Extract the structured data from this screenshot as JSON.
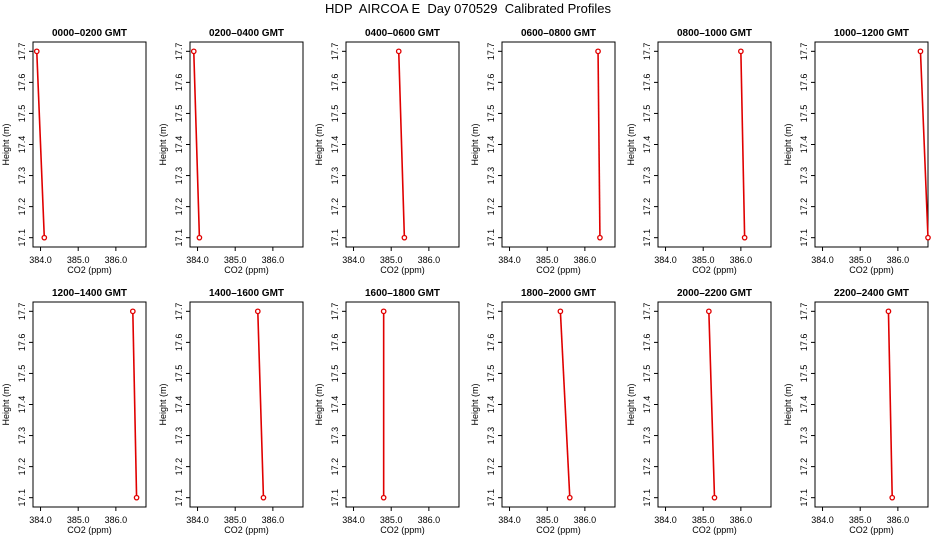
{
  "title": "HDP  AIRCOA E  Day 070529  Calibrated Profiles",
  "colors": {
    "series": "#e00000",
    "axis": "#000000"
  },
  "chart_data": [
    {
      "type": "line",
      "title": "0000–0200 GMT",
      "xlabel": "CO2 (ppm)",
      "ylabel": "Height (m)",
      "xlim": [
        383.8,
        386.8
      ],
      "ylim": [
        17.07,
        17.73
      ],
      "xticks": [
        "384.0",
        "385.0",
        "386.0"
      ],
      "yticks": [
        "17.1",
        "17.2",
        "17.3",
        "17.4",
        "17.5",
        "17.6",
        "17.7"
      ],
      "x": [
        383.9,
        384.1
      ],
      "y": [
        17.7,
        17.1
      ]
    },
    {
      "type": "line",
      "title": "0200–0400 GMT",
      "xlabel": "CO2 (ppm)",
      "ylabel": "Height (m)",
      "xlim": [
        383.8,
        386.8
      ],
      "ylim": [
        17.07,
        17.73
      ],
      "xticks": [
        "384.0",
        "385.0",
        "386.0"
      ],
      "yticks": [
        "17.1",
        "17.2",
        "17.3",
        "17.4",
        "17.5",
        "17.6",
        "17.7"
      ],
      "x": [
        383.9,
        384.05
      ],
      "y": [
        17.7,
        17.1
      ]
    },
    {
      "type": "line",
      "title": "0400–0600 GMT",
      "xlabel": "CO2 (ppm)",
      "ylabel": "Height (m)",
      "xlim": [
        383.8,
        386.8
      ],
      "ylim": [
        17.07,
        17.73
      ],
      "xticks": [
        "384.0",
        "385.0",
        "386.0"
      ],
      "yticks": [
        "17.1",
        "17.2",
        "17.3",
        "17.4",
        "17.5",
        "17.6",
        "17.7"
      ],
      "x": [
        385.2,
        385.35
      ],
      "y": [
        17.7,
        17.1
      ]
    },
    {
      "type": "line",
      "title": "0600–0800 GMT",
      "xlabel": "CO2 (ppm)",
      "ylabel": "Height (m)",
      "xlim": [
        383.8,
        386.8
      ],
      "ylim": [
        17.07,
        17.73
      ],
      "xticks": [
        "384.0",
        "385.0",
        "386.0"
      ],
      "yticks": [
        "17.1",
        "17.2",
        "17.3",
        "17.4",
        "17.5",
        "17.6",
        "17.7"
      ],
      "x": [
        386.35,
        386.4
      ],
      "y": [
        17.7,
        17.1
      ]
    },
    {
      "type": "line",
      "title": "0800–1000 GMT",
      "xlabel": "CO2 (ppm)",
      "ylabel": "Height (m)",
      "xlim": [
        383.8,
        386.8
      ],
      "ylim": [
        17.07,
        17.73
      ],
      "xticks": [
        "384.0",
        "385.0",
        "386.0"
      ],
      "yticks": [
        "17.1",
        "17.2",
        "17.3",
        "17.4",
        "17.5",
        "17.6",
        "17.7"
      ],
      "x": [
        386.0,
        386.1
      ],
      "y": [
        17.7,
        17.1
      ]
    },
    {
      "type": "line",
      "title": "1000–1200 GMT",
      "xlabel": "CO2 (ppm)",
      "ylabel": "Height (m)",
      "xlim": [
        383.8,
        386.8
      ],
      "ylim": [
        17.07,
        17.73
      ],
      "xticks": [
        "384.0",
        "385.0",
        "386.0"
      ],
      "yticks": [
        "17.1",
        "17.2",
        "17.3",
        "17.4",
        "17.5",
        "17.6",
        "17.7"
      ],
      "x": [
        386.6,
        386.8
      ],
      "y": [
        17.7,
        17.1
      ]
    },
    {
      "type": "line",
      "title": "1200–1400 GMT",
      "xlabel": "CO2 (ppm)",
      "ylabel": "Height (m)",
      "xlim": [
        383.8,
        386.8
      ],
      "ylim": [
        17.07,
        17.73
      ],
      "xticks": [
        "384.0",
        "385.0",
        "386.0"
      ],
      "yticks": [
        "17.1",
        "17.2",
        "17.3",
        "17.4",
        "17.5",
        "17.6",
        "17.7"
      ],
      "x": [
        386.45,
        386.55
      ],
      "y": [
        17.7,
        17.1
      ]
    },
    {
      "type": "line",
      "title": "1400–1600 GMT",
      "xlabel": "CO2 (ppm)",
      "ylabel": "Height (m)",
      "xlim": [
        383.8,
        386.8
      ],
      "ylim": [
        17.07,
        17.73
      ],
      "xticks": [
        "384.0",
        "385.0",
        "386.0"
      ],
      "yticks": [
        "17.1",
        "17.2",
        "17.3",
        "17.4",
        "17.5",
        "17.6",
        "17.7"
      ],
      "x": [
        385.6,
        385.75
      ],
      "y": [
        17.7,
        17.1
      ]
    },
    {
      "type": "line",
      "title": "1600–1800 GMT",
      "xlabel": "CO2 (ppm)",
      "ylabel": "Height (m)",
      "xlim": [
        383.8,
        386.8
      ],
      "ylim": [
        17.07,
        17.73
      ],
      "xticks": [
        "384.0",
        "385.0",
        "386.0"
      ],
      "yticks": [
        "17.1",
        "17.2",
        "17.3",
        "17.4",
        "17.5",
        "17.6",
        "17.7"
      ],
      "x": [
        384.8,
        384.8
      ],
      "y": [
        17.7,
        17.1
      ]
    },
    {
      "type": "line",
      "title": "1800–2000 GMT",
      "xlabel": "CO2 (ppm)",
      "ylabel": "Height (m)",
      "xlim": [
        383.8,
        386.8
      ],
      "ylim": [
        17.07,
        17.73
      ],
      "xticks": [
        "384.0",
        "385.0",
        "386.0"
      ],
      "yticks": [
        "17.1",
        "17.2",
        "17.3",
        "17.4",
        "17.5",
        "17.6",
        "17.7"
      ],
      "x": [
        385.35,
        385.6
      ],
      "y": [
        17.7,
        17.1
      ]
    },
    {
      "type": "line",
      "title": "2000–2200 GMT",
      "xlabel": "CO2 (ppm)",
      "ylabel": "Height (m)",
      "xlim": [
        383.8,
        386.8
      ],
      "ylim": [
        17.07,
        17.73
      ],
      "xticks": [
        "384.0",
        "385.0",
        "386.0"
      ],
      "yticks": [
        "17.1",
        "17.2",
        "17.3",
        "17.4",
        "17.5",
        "17.6",
        "17.7"
      ],
      "x": [
        385.15,
        385.3
      ],
      "y": [
        17.7,
        17.1
      ]
    },
    {
      "type": "line",
      "title": "2200–2400 GMT",
      "xlabel": "CO2 (ppm)",
      "ylabel": "Height (m)",
      "xlim": [
        383.8,
        386.8
      ],
      "ylim": [
        17.07,
        17.73
      ],
      "xticks": [
        "384.0",
        "385.0",
        "386.0"
      ],
      "yticks": [
        "17.1",
        "17.2",
        "17.3",
        "17.4",
        "17.5",
        "17.6",
        "17.7"
      ],
      "x": [
        385.75,
        385.85
      ],
      "y": [
        17.7,
        17.1
      ]
    }
  ]
}
